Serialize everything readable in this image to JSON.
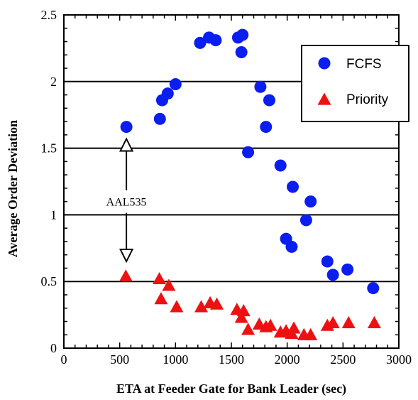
{
  "chart_data": {
    "type": "scatter",
    "title": "",
    "xlabel": "ETA at Feeder Gate for Bank Leader (sec)",
    "ylabel": "Average Order Deviation",
    "xlim": [
      0,
      3000
    ],
    "ylim": [
      0,
      2.5
    ],
    "x_ticks": [
      "0",
      "500",
      "1000",
      "1500",
      "2000",
      "2500",
      "3000"
    ],
    "y_ticks": [
      "0",
      "0.5",
      "1",
      "1.5",
      "2",
      "2.5"
    ],
    "grid": "horizontal major lines",
    "legend_position": "top-right",
    "series": [
      {
        "name": "FCFS",
        "marker": "circle",
        "color": "#0a1ef0",
        "points": [
          [
            560,
            1.66
          ],
          [
            860,
            1.72
          ],
          [
            880,
            1.86
          ],
          [
            930,
            1.91
          ],
          [
            1000,
            1.98
          ],
          [
            1220,
            2.29
          ],
          [
            1300,
            2.33
          ],
          [
            1360,
            2.31
          ],
          [
            1560,
            2.33
          ],
          [
            1600,
            2.35
          ],
          [
            1590,
            2.22
          ],
          [
            1650,
            1.47
          ],
          [
            1760,
            1.96
          ],
          [
            1810,
            1.66
          ],
          [
            1840,
            1.86
          ],
          [
            1940,
            1.37
          ],
          [
            2050,
            1.21
          ],
          [
            1990,
            0.82
          ],
          [
            2040,
            0.76
          ],
          [
            2170,
            0.96
          ],
          [
            2210,
            1.1
          ],
          [
            2360,
            0.65
          ],
          [
            2410,
            0.55
          ],
          [
            2540,
            0.59
          ],
          [
            2770,
            0.45
          ]
        ]
      },
      {
        "name": "Priority",
        "marker": "triangle",
        "color": "#ee1111",
        "points": [
          [
            555,
            0.54
          ],
          [
            855,
            0.52
          ],
          [
            870,
            0.37
          ],
          [
            940,
            0.47
          ],
          [
            1010,
            0.31
          ],
          [
            1230,
            0.31
          ],
          [
            1310,
            0.34
          ],
          [
            1370,
            0.33
          ],
          [
            1550,
            0.29
          ],
          [
            1610,
            0.28
          ],
          [
            1590,
            0.23
          ],
          [
            1650,
            0.14
          ],
          [
            1750,
            0.18
          ],
          [
            1810,
            0.16
          ],
          [
            1850,
            0.17
          ],
          [
            1940,
            0.12
          ],
          [
            1990,
            0.13
          ],
          [
            2040,
            0.11
          ],
          [
            2060,
            0.15
          ],
          [
            2150,
            0.1
          ],
          [
            2210,
            0.1
          ],
          [
            2360,
            0.17
          ],
          [
            2410,
            0.19
          ],
          [
            2550,
            0.19
          ],
          [
            2780,
            0.19
          ]
        ]
      }
    ],
    "annotation": {
      "label": "AAL535",
      "x": 560,
      "label_y": 1.1,
      "arrow_up_to": 1.57,
      "arrow_down_to": 0.65
    }
  }
}
